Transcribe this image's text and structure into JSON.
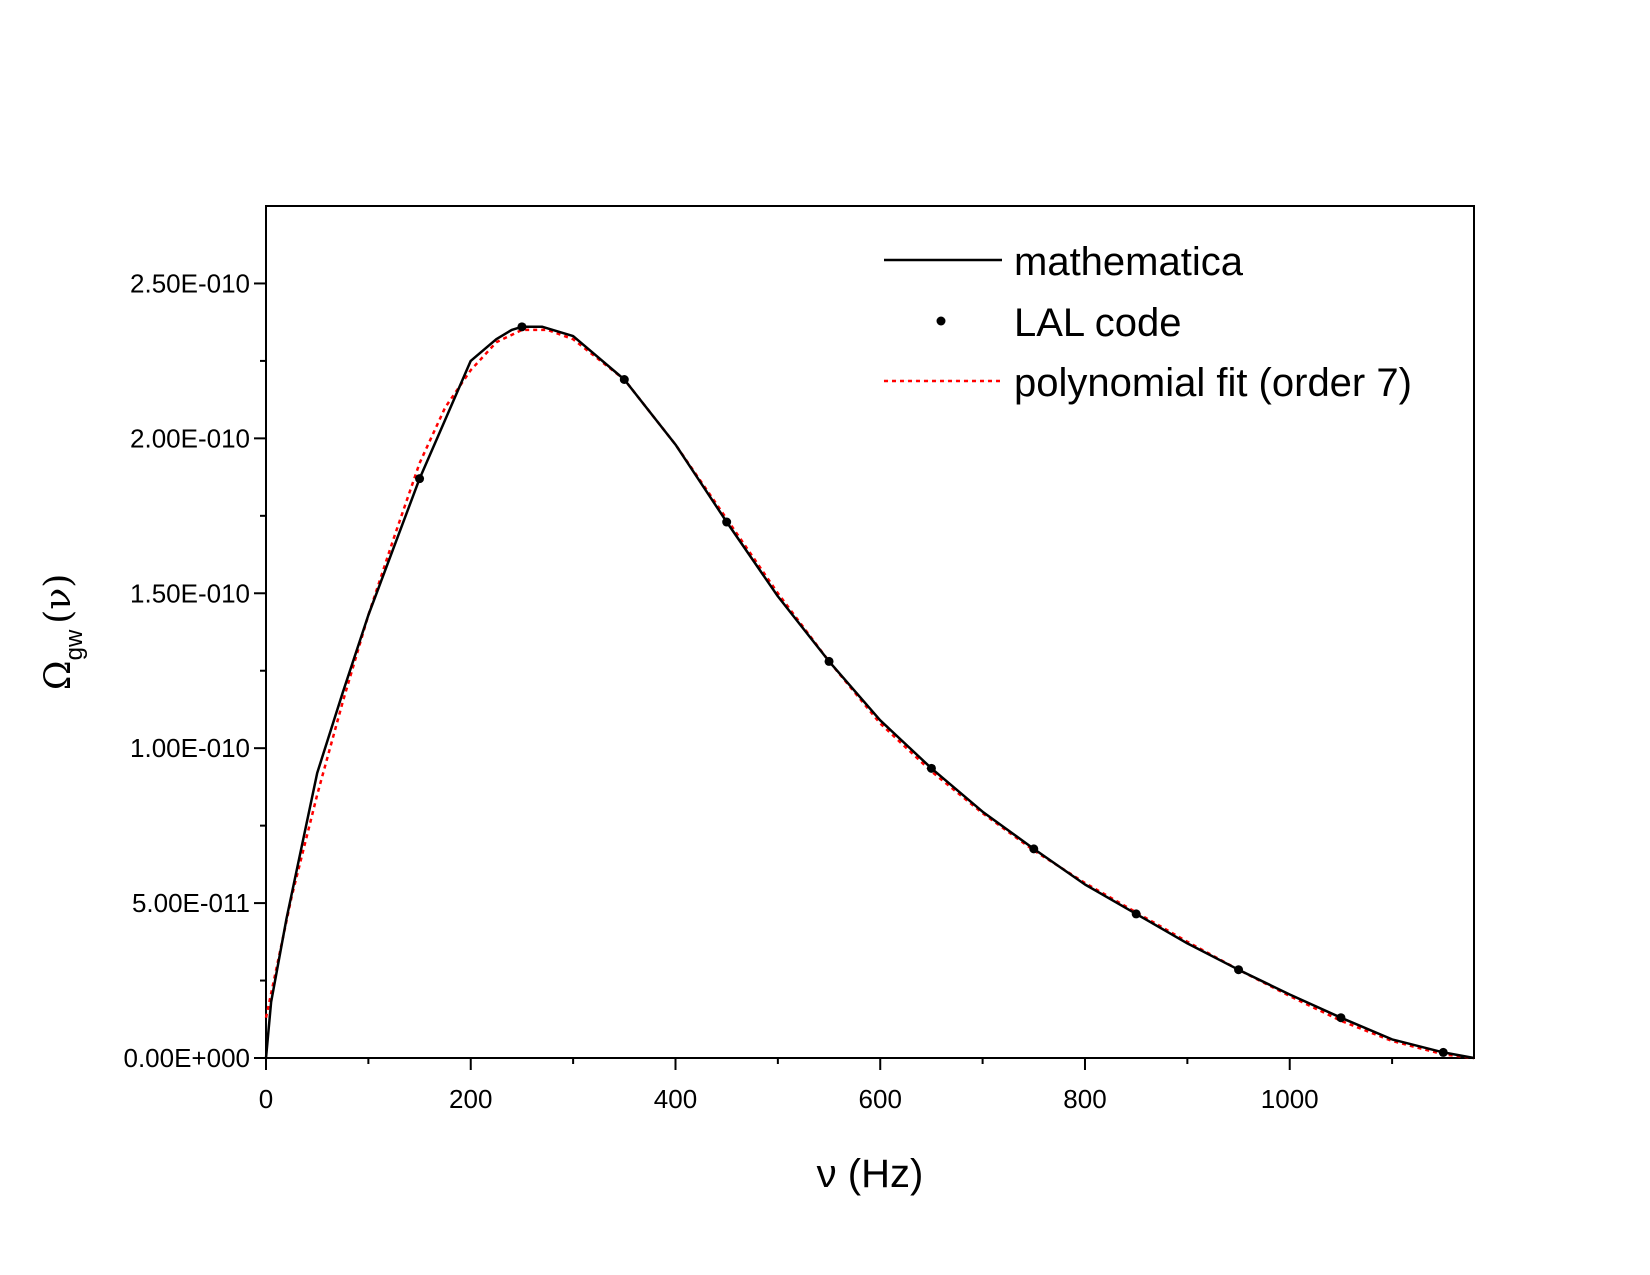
{
  "chart_data": {
    "type": "line",
    "title": "",
    "xlabel": "ν (Hz)",
    "ylabel": {
      "main": "Ω",
      "subscript": "gw",
      "suffix": "(ν)"
    },
    "xlim": [
      0,
      1180
    ],
    "ylim": [
      0,
      2.75e-10
    ],
    "x_ticks": [
      0,
      200,
      400,
      600,
      800,
      1000
    ],
    "x_tick_labels": [
      "0",
      "200",
      "400",
      "600",
      "800",
      "1000"
    ],
    "y_ticks": [
      0,
      5e-11,
      1e-10,
      1.5e-10,
      2e-10,
      2.5e-10
    ],
    "y_tick_labels": [
      "0.00E+000",
      "5.00E-011",
      "1.00E-010",
      "1.50E-010",
      "2.00E-010",
      "2.50E-010"
    ],
    "grid": false,
    "legend_position": "top-right",
    "series": [
      {
        "name": "mathematica",
        "style": "solid-line",
        "color": "#000000",
        "x": [
          0,
          5,
          20,
          50,
          75,
          100,
          125,
          150,
          175,
          200,
          225,
          240,
          250,
          260,
          270,
          300,
          350,
          400,
          450,
          500,
          550,
          600,
          650,
          700,
          750,
          800,
          850,
          900,
          950,
          1000,
          1050,
          1100,
          1150,
          1180
        ],
        "y": [
          0,
          1.8e-11,
          4.5e-11,
          9.2e-11,
          1.18e-10,
          1.43e-10,
          1.65e-10,
          1.87e-10,
          2.06e-10,
          2.25e-10,
          2.32e-10,
          2.35e-10,
          2.36e-10,
          2.36e-10,
          2.36e-10,
          2.33e-10,
          2.19e-10,
          1.98e-10,
          1.73e-10,
          1.49e-10,
          1.28e-10,
          1.09e-10,
          9.35e-11,
          7.95e-11,
          6.75e-11,
          5.6e-11,
          4.65e-11,
          3.7e-11,
          2.85e-11,
          2.05e-11,
          1.3e-11,
          6e-12,
          1.8e-12,
          0
        ]
      },
      {
        "name": "LAL code",
        "style": "dots",
        "color": "#000000",
        "x": [
          150,
          250,
          350,
          450,
          550,
          650,
          750,
          850,
          950,
          1050,
          1150
        ],
        "y": [
          1.87e-10,
          2.36e-10,
          2.19e-10,
          1.73e-10,
          1.28e-10,
          9.35e-11,
          6.75e-11,
          4.65e-11,
          2.85e-11,
          1.3e-11,
          1.8e-12
        ]
      },
      {
        "name": "polynomial fit (order 7)",
        "style": "dotted-line",
        "color": "#ff0000",
        "x": [
          0,
          25,
          50,
          75,
          100,
          125,
          150,
          175,
          200,
          225,
          250,
          275,
          300,
          350,
          400,
          450,
          500,
          550,
          600,
          650,
          700,
          750,
          800,
          850,
          900,
          950,
          1000,
          1050,
          1100,
          1150,
          1180
        ],
        "y": [
          1.3e-11,
          5.2e-11,
          8.5e-11,
          1.15e-10,
          1.43e-10,
          1.68e-10,
          1.92e-10,
          2.1e-10,
          2.22e-10,
          2.31e-10,
          2.35e-10,
          2.35e-10,
          2.32e-10,
          2.19e-10,
          1.98e-10,
          1.74e-10,
          1.5e-10,
          1.28e-10,
          1.08e-10,
          9.25e-11,
          7.9e-11,
          6.7e-11,
          5.65e-11,
          4.7e-11,
          3.75e-11,
          2.85e-11,
          2e-11,
          1.2e-11,
          5.5e-12,
          1.2e-12,
          0
        ]
      }
    ]
  }
}
